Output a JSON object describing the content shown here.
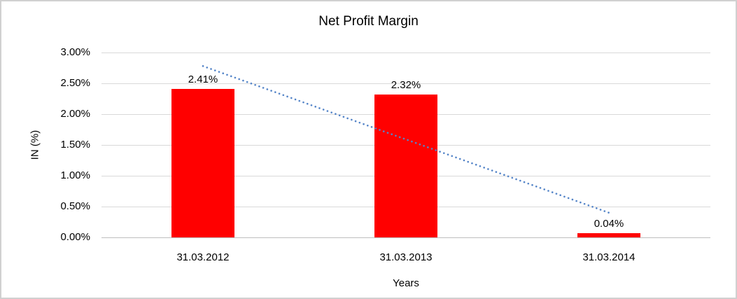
{
  "window": {
    "background": "#ffffff",
    "border_color": "#d0d0d0"
  },
  "chart_data": {
    "type": "bar",
    "title": "Net Profit Margin",
    "xlabel": "Years",
    "ylabel": "IN (%)",
    "categories": [
      "31.03.2012",
      "31.03.2013",
      "31.03.2014"
    ],
    "values": [
      2.41,
      2.32,
      0.04
    ],
    "data_labels": [
      "2.41%",
      "2.32%",
      "0.04%"
    ],
    "ylim": [
      0,
      3
    ],
    "yticks": {
      "values": [
        3,
        2.5,
        2,
        1.5,
        1,
        0.5,
        0
      ],
      "labels": [
        "3.00%",
        "2.50%",
        "2.00%",
        "1.50%",
        "1.00%",
        "0.50%",
        "0.00%"
      ]
    },
    "grid": true,
    "legend": "none",
    "bar_color": "#ff0000",
    "gridline_color": "#d9d9d9",
    "axis_line_color": "#bfbfbf",
    "text_color": "#000000",
    "trendline": {
      "type": "linear",
      "style": "round-dot",
      "color": "#5585c8",
      "start_value": 2.78,
      "end_value": 0.4
    }
  }
}
